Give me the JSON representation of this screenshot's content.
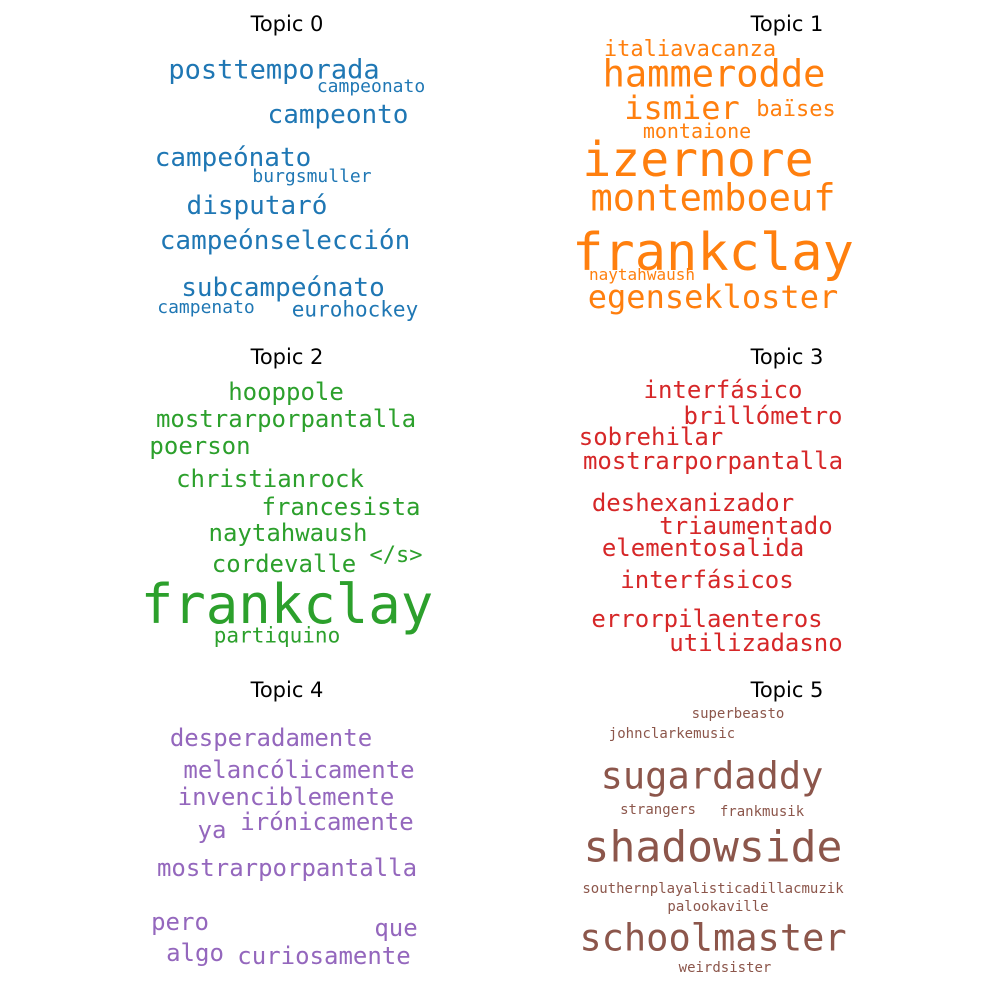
{
  "panels": [
    {
      "title": "Topic 0",
      "color": "#1f77b4",
      "words": [
        {
          "text": "posttemporada"
        },
        {
          "text": "campeonato"
        },
        {
          "text": "campeonto"
        },
        {
          "text": "campeónato"
        },
        {
          "text": "burgsmuller"
        },
        {
          "text": "disputaró"
        },
        {
          "text": "campeónselección"
        },
        {
          "text": "subcampeónato"
        },
        {
          "text": "campenato"
        },
        {
          "text": "eurohockey"
        }
      ]
    },
    {
      "title": "Topic 1",
      "color": "#ff7f0e",
      "words": [
        {
          "text": "italiavacanza"
        },
        {
          "text": "hammerodde"
        },
        {
          "text": "ismier"
        },
        {
          "text": "baïses"
        },
        {
          "text": "montaione"
        },
        {
          "text": "izernore"
        },
        {
          "text": "montemboeuf"
        },
        {
          "text": "frankclay"
        },
        {
          "text": "naytahwaush"
        },
        {
          "text": "egensekloster"
        }
      ]
    },
    {
      "title": "Topic 2",
      "color": "#2ca02c",
      "words": [
        {
          "text": "hooppole"
        },
        {
          "text": "mostrarporpantalla"
        },
        {
          "text": "poerson"
        },
        {
          "text": "christianrock"
        },
        {
          "text": "francesista"
        },
        {
          "text": "naytahwaush"
        },
        {
          "text": "</s>"
        },
        {
          "text": "cordevalle"
        },
        {
          "text": "frankclay"
        },
        {
          "text": "partiquino"
        }
      ]
    },
    {
      "title": "Topic 3",
      "color": "#d62728",
      "words": [
        {
          "text": "interfásico"
        },
        {
          "text": "brillómetro"
        },
        {
          "text": "sobrehilar"
        },
        {
          "text": "mostrarporpantalla"
        },
        {
          "text": "deshexanizador"
        },
        {
          "text": "triaumentado"
        },
        {
          "text": "elementosalida"
        },
        {
          "text": "interfásicos"
        },
        {
          "text": "errorpilaenteros"
        },
        {
          "text": "utilizadasno"
        }
      ]
    },
    {
      "title": "Topic 4",
      "color": "#9467bd",
      "words": [
        {
          "text": "desperadamente"
        },
        {
          "text": "melancólicamente"
        },
        {
          "text": "invenciblemente"
        },
        {
          "text": "irónicamente"
        },
        {
          "text": "ya"
        },
        {
          "text": "mostrarporpantalla"
        },
        {
          "text": "pero"
        },
        {
          "text": "que"
        },
        {
          "text": "algo"
        },
        {
          "text": "curiosamente"
        }
      ]
    },
    {
      "title": "Topic 5",
      "color": "#8c564b",
      "words": [
        {
          "text": "superbeasto"
        },
        {
          "text": "johnclarkemusic"
        },
        {
          "text": "sugardaddy"
        },
        {
          "text": "strangers"
        },
        {
          "text": "frankmusik"
        },
        {
          "text": "shadowside"
        },
        {
          "text": "southernplayalisticadillacmuzik"
        },
        {
          "text": "palookaville"
        },
        {
          "text": "schoolmaster"
        },
        {
          "text": "weirdsister"
        }
      ]
    }
  ]
}
